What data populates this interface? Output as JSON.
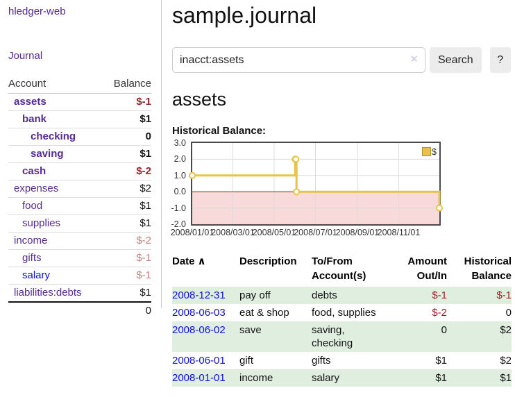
{
  "colors": {
    "visited_link_purple": "#542a95",
    "unvisited_link_blue": "#0e0ee8",
    "negative_red": "#a02028",
    "negative_faded": "#c5817f",
    "row_green": "#dfeedf",
    "chart_line_gold": "#e8c24a",
    "chart_legend_border": "#b5922e",
    "chart_negative_region_pink": "#f9dada",
    "chart_zero_line_maroon": "#8e1a1a",
    "chart_grid_gray": "#dcdcdc"
  },
  "sidebar": {
    "brand": "hledger-web",
    "nav_journal": "Journal",
    "table": {
      "headers": [
        "Account",
        "Balance"
      ],
      "rows": [
        {
          "account": "assets",
          "balance": "$-1",
          "indent": 1,
          "in_account": true
        },
        {
          "account": "bank",
          "balance": "$1",
          "indent": 2,
          "in_account": true
        },
        {
          "account": "checking",
          "balance": "0",
          "indent": 3,
          "in_account": true
        },
        {
          "account": "saving",
          "balance": "$1",
          "indent": 3,
          "in_account": true
        },
        {
          "account": "cash",
          "balance": "$-2",
          "indent": 2,
          "in_account": true
        },
        {
          "account": "expenses",
          "balance": "$2",
          "indent": 1,
          "in_account": false
        },
        {
          "account": "food",
          "balance": "$1",
          "indent": 2,
          "in_account": false
        },
        {
          "account": "supplies",
          "balance": "$1",
          "indent": 2,
          "in_account": false
        },
        {
          "account": "income",
          "balance": "$-2",
          "indent": 1,
          "in_account": false
        },
        {
          "account": "gifts",
          "balance": "$-1",
          "indent": 2,
          "in_account": false
        },
        {
          "account": "salary",
          "balance": "$-1",
          "indent": 2,
          "in_account": false,
          "unvisited": true
        },
        {
          "account": "liabilities:debts",
          "balance": "$1",
          "indent": 1,
          "in_account": false
        }
      ],
      "total": "0"
    }
  },
  "header": {
    "title": "sample.journal"
  },
  "search": {
    "value": "inacct:assets",
    "clear_icon": "✕",
    "button_label": "Search",
    "help_label": "?"
  },
  "account_page": {
    "heading": "assets",
    "chart_label": "Historical Balance:"
  },
  "chart_data": {
    "type": "line",
    "step": true,
    "title": "Historical Balance:",
    "x_range": [
      "2008-01-01",
      "2008-12-31"
    ],
    "ylim": [
      -2,
      3
    ],
    "yticks": [
      "3.0",
      "2.0",
      "1.0",
      "0.0",
      "-1.0",
      "-2.0"
    ],
    "xticks": [
      "2008/01/01",
      "2008/03/01",
      "2008/05/01",
      "2008/07/01",
      "2008/09/01",
      "2008/11/01"
    ],
    "grid": true,
    "legend_position": "top-right",
    "negative_region_shaded": true,
    "series": [
      {
        "name": "$",
        "points": [
          [
            "2008-01-01",
            1
          ],
          [
            "2008-06-01",
            2
          ],
          [
            "2008-06-02",
            2
          ],
          [
            "2008-06-03",
            0
          ],
          [
            "2008-12-31",
            -1
          ]
        ]
      }
    ]
  },
  "register": {
    "sort_icon": "∧",
    "headers": [
      "Date",
      "Description",
      "To/From Account(s)",
      "Amount Out/In",
      "Historical Balance"
    ],
    "rows": [
      {
        "date": "2008-12-31",
        "description": "pay off",
        "accounts": "debts",
        "amount": "$-1",
        "balance": "$-1"
      },
      {
        "date": "2008-06-03",
        "description": "eat & shop",
        "accounts": "food, supplies",
        "amount": "$-2",
        "balance": "0"
      },
      {
        "date": "2008-06-02",
        "description": "save",
        "accounts": "saving, checking",
        "amount": "0",
        "balance": "$2"
      },
      {
        "date": "2008-06-01",
        "description": "gift",
        "accounts": "gifts",
        "amount": "$1",
        "balance": "$2"
      },
      {
        "date": "2008-01-01",
        "description": "income",
        "accounts": "salary",
        "amount": "$1",
        "balance": "$1"
      }
    ]
  }
}
